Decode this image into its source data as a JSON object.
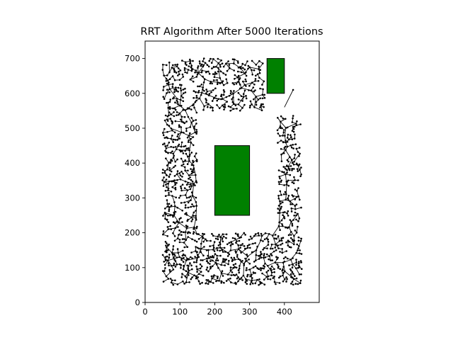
{
  "chart_data": {
    "type": "scatter",
    "title": "RRT Algorithm After 5000 Iterations",
    "xlabel": "",
    "ylabel": "",
    "xlim": [
      0,
      500
    ],
    "ylim": [
      0,
      750
    ],
    "xticks": [
      0,
      100,
      200,
      300,
      400
    ],
    "yticks": [
      0,
      100,
      200,
      300,
      400,
      500,
      600,
      700
    ],
    "grid": false,
    "legend": "none",
    "obstacles": [
      {
        "x0": 350,
        "y0": 600,
        "x1": 400,
        "y1": 700,
        "color": "#008000"
      },
      {
        "x0": 200,
        "y0": 250,
        "x1": 300,
        "y1": 450,
        "color": "#008000"
      }
    ],
    "tree": {
      "description_count_nodes": 1400,
      "node_color": "#000000",
      "edge_color": "#000000",
      "free_region": {
        "outer": [
          50,
          50,
          450,
          700
        ],
        "inner_void": [
          150,
          200,
          380,
          550
        ],
        "gap": [
          350,
          540,
          450,
          620
        ]
      },
      "special_branch": [
        [
          400,
          560
        ],
        [
          425,
          610
        ]
      ]
    },
    "colors": {
      "axes": "#000000",
      "background": "#ffffff"
    }
  }
}
